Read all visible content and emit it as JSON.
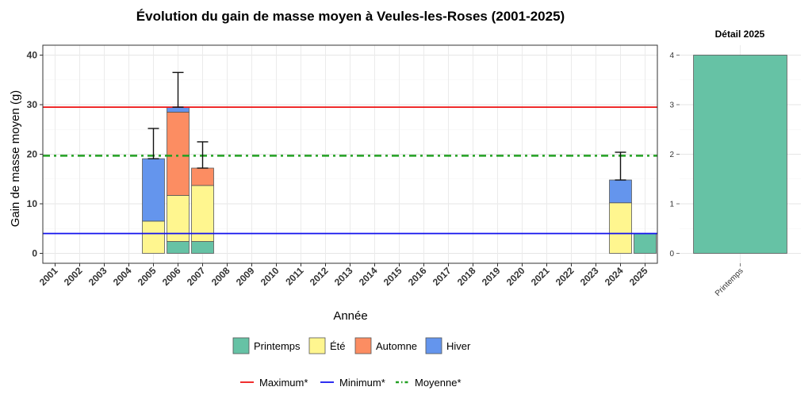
{
  "chart_data": [
    {
      "type": "bar",
      "stacked": true,
      "title": "Évolution du gain de masse moyen à Veules-les-Roses (2001-2025)",
      "xlabel": "Année",
      "ylabel": "Gain de masse moyen (g)",
      "ylim": [
        -2,
        42
      ],
      "yticks": [
        0,
        10,
        20,
        30,
        40
      ],
      "grid": true,
      "categories": [
        "2001",
        "2002",
        "2003",
        "2004",
        "2005",
        "2006",
        "2007",
        "2008",
        "2009",
        "2010",
        "2011",
        "2012",
        "2013",
        "2014",
        "2015",
        "2016",
        "2017",
        "2018",
        "2019",
        "2020",
        "2021",
        "2022",
        "2023",
        "2024",
        "2025"
      ],
      "series": [
        {
          "name": "Printemps",
          "color": "#66c2a5",
          "values": [
            0,
            0,
            0,
            0,
            0,
            2.4,
            2.4,
            0,
            0,
            0,
            0,
            0,
            0,
            0,
            0,
            0,
            0,
            0,
            0,
            0,
            0,
            0,
            0,
            0,
            4.0
          ]
        },
        {
          "name": "Été",
          "color": "#fff68f",
          "values": [
            0,
            0,
            0,
            0,
            6.5,
            9.3,
            11.3,
            0,
            0,
            0,
            0,
            0,
            0,
            0,
            0,
            0,
            0,
            0,
            0,
            0,
            0,
            0,
            0,
            10.2,
            0
          ]
        },
        {
          "name": "Automne",
          "color": "#fc8d62",
          "values": [
            0,
            0,
            0,
            0,
            0,
            16.8,
            3.5,
            0,
            0,
            0,
            0,
            0,
            0,
            0,
            0,
            0,
            0,
            0,
            0,
            0,
            0,
            0,
            0,
            0,
            0
          ]
        },
        {
          "name": "Hiver",
          "color": "#6495ed",
          "values": [
            0,
            0,
            0,
            0,
            12.6,
            1.0,
            0,
            0,
            0,
            0,
            0,
            0,
            0,
            0,
            0,
            0,
            0,
            0,
            0,
            0,
            0,
            0,
            0,
            4.6,
            0
          ]
        }
      ],
      "error_bars": [
        {
          "category": "2005",
          "low": 19.1,
          "high": 25.2
        },
        {
          "category": "2006",
          "low": 29.5,
          "high": 36.5
        },
        {
          "category": "2007",
          "low": 17.2,
          "high": 22.5
        },
        {
          "category": "2024",
          "low": 14.8,
          "high": 20.4
        }
      ],
      "reference_lines": [
        {
          "name": "Maximum*",
          "value": 29.5,
          "color": "#ee1111",
          "style": "solid"
        },
        {
          "name": "Minimum*",
          "value": 4.0,
          "color": "#1111ee",
          "style": "solid"
        },
        {
          "name": "Moyenne*",
          "value": 19.7,
          "color": "#22a022",
          "style": "dashdot"
        }
      ],
      "legend": {
        "placement": "bottom",
        "fill_title": "",
        "line_title": ""
      }
    },
    {
      "type": "bar",
      "title": "Détail 2025",
      "categories": [
        "Printemps"
      ],
      "values": [
        4.0
      ],
      "color": "#66c2a5",
      "ylim": [
        -0.2,
        4.2
      ],
      "yticks": [
        0,
        1,
        2,
        3,
        4
      ],
      "grid": true
    }
  ]
}
